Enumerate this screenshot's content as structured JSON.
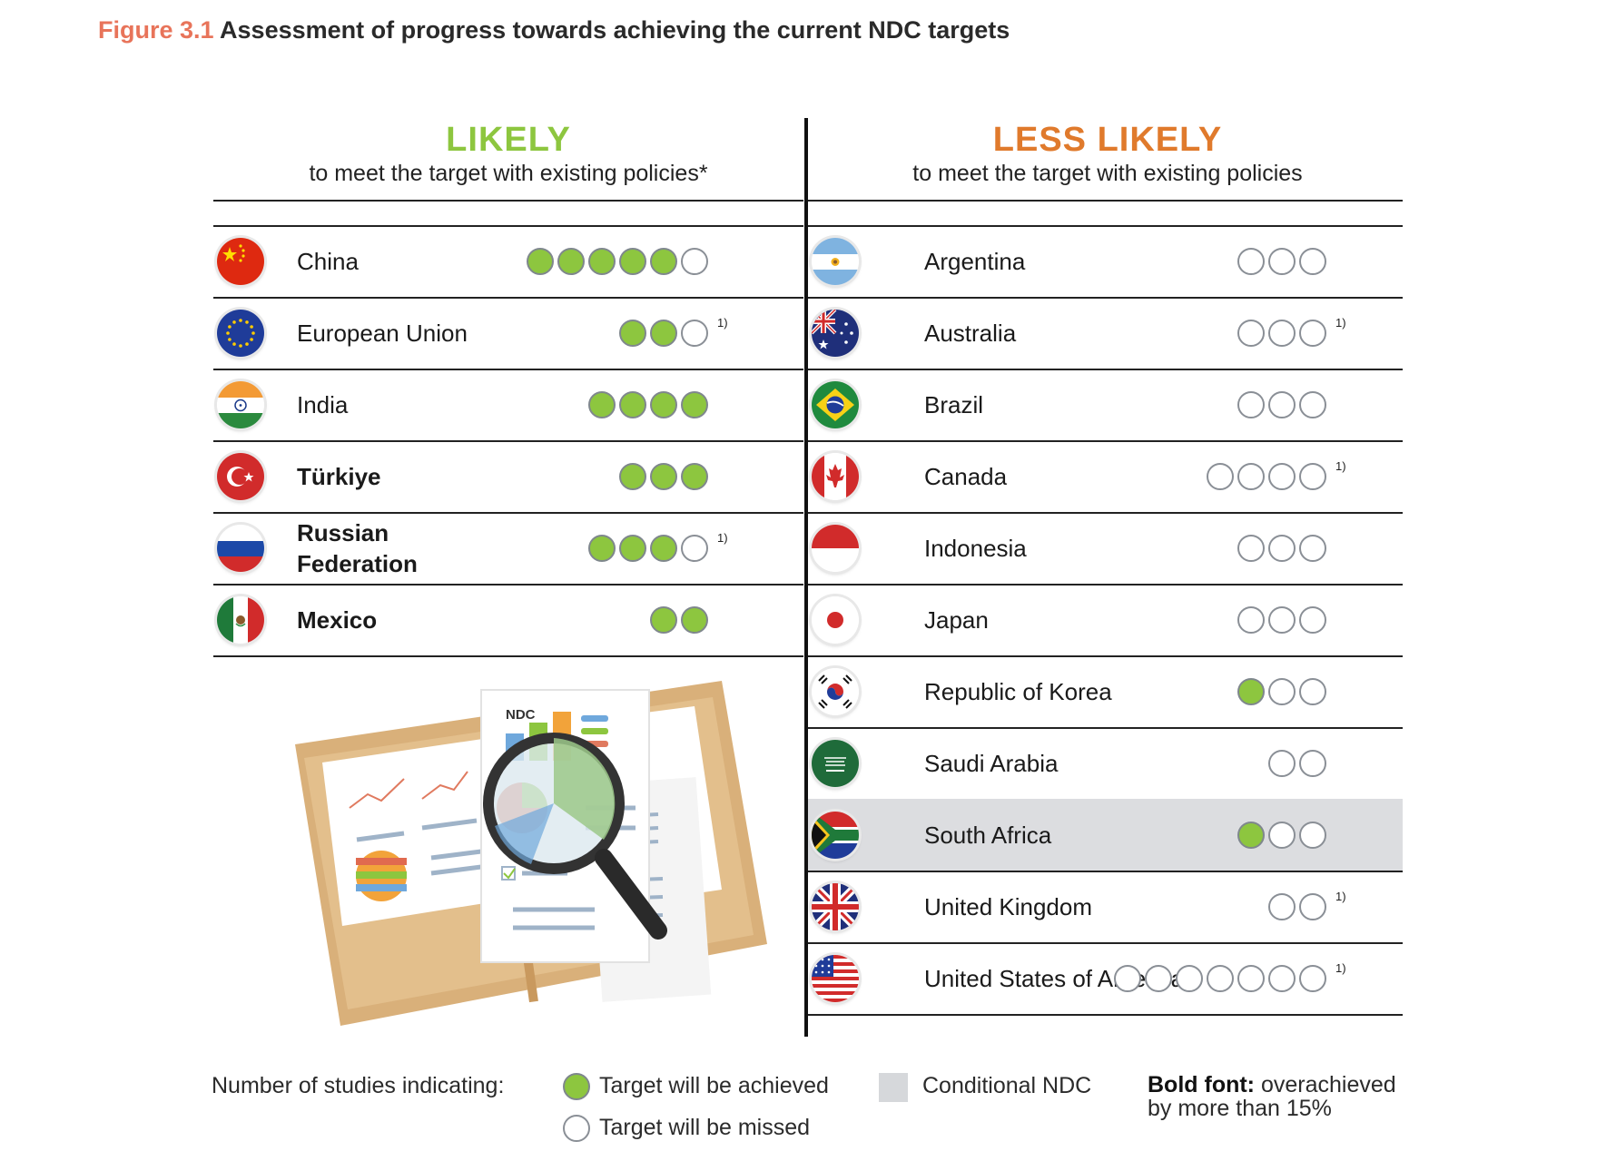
{
  "figure": {
    "number": "Figure 3.1",
    "title": "Assessment of progress towards achieving the current NDC targets"
  },
  "columns": {
    "likely": {
      "heading": "LIKELY",
      "subheading": "to meet the target with existing policies*",
      "color": "#8dc63f"
    },
    "less_likely": {
      "heading": "LESS LIKELY",
      "subheading": "to meet the target with existing policies",
      "color": "#e07a2c"
    }
  },
  "likely_rows": [
    {
      "country": "China",
      "achieved": 5,
      "missed": 1,
      "footnote": "",
      "bold": false,
      "conditional": false,
      "flag": "china-flag-icon"
    },
    {
      "country": "European Union",
      "achieved": 2,
      "missed": 1,
      "footnote": "1)",
      "bold": false,
      "conditional": false,
      "flag": "eu-flag-icon"
    },
    {
      "country": "India",
      "achieved": 4,
      "missed": 0,
      "footnote": "",
      "bold": false,
      "conditional": false,
      "flag": "india-flag-icon"
    },
    {
      "country": "Türkiye",
      "achieved": 3,
      "missed": 0,
      "footnote": "",
      "bold": true,
      "conditional": false,
      "flag": "turkey-flag-icon"
    },
    {
      "country": "Russian Federation",
      "achieved": 3,
      "missed": 1,
      "footnote": "1)",
      "bold": true,
      "conditional": false,
      "flag": "russia-flag-icon"
    },
    {
      "country": "Mexico",
      "achieved": 2,
      "missed": 0,
      "footnote": "",
      "bold": true,
      "conditional": false,
      "flag": "mexico-flag-icon"
    }
  ],
  "less_likely_rows": [
    {
      "country": "Argentina",
      "achieved": 0,
      "missed": 3,
      "footnote": "",
      "bold": false,
      "conditional": false,
      "flag": "argentina-flag-icon"
    },
    {
      "country": "Australia",
      "achieved": 0,
      "missed": 3,
      "footnote": "1)",
      "bold": false,
      "conditional": false,
      "flag": "australia-flag-icon"
    },
    {
      "country": "Brazil",
      "achieved": 0,
      "missed": 3,
      "footnote": "",
      "bold": false,
      "conditional": false,
      "flag": "brazil-flag-icon"
    },
    {
      "country": "Canada",
      "achieved": 0,
      "missed": 4,
      "footnote": "1)",
      "bold": false,
      "conditional": false,
      "flag": "canada-flag-icon"
    },
    {
      "country": "Indonesia",
      "achieved": 0,
      "missed": 3,
      "footnote": "",
      "bold": false,
      "conditional": false,
      "flag": "indonesia-flag-icon"
    },
    {
      "country": "Japan",
      "achieved": 0,
      "missed": 3,
      "footnote": "",
      "bold": false,
      "conditional": false,
      "flag": "japan-flag-icon"
    },
    {
      "country": "Republic of Korea",
      "achieved": 1,
      "missed": 2,
      "footnote": "",
      "bold": false,
      "conditional": false,
      "flag": "korea-flag-icon"
    },
    {
      "country": "Saudi Arabia",
      "achieved": 0,
      "missed": 2,
      "footnote": "",
      "bold": false,
      "conditional": false,
      "flag": "saudi-flag-icon"
    },
    {
      "country": "South Africa",
      "achieved": 1,
      "missed": 2,
      "footnote": "",
      "bold": false,
      "conditional": true,
      "flag": "south-africa-flag-icon"
    },
    {
      "country": "United Kingdom",
      "achieved": 0,
      "missed": 2,
      "footnote": "1)",
      "bold": false,
      "conditional": false,
      "flag": "uk-flag-icon"
    },
    {
      "country": "United States of America",
      "achieved": 0,
      "missed": 7,
      "footnote": "1)",
      "bold": false,
      "conditional": false,
      "flag": "usa-flag-icon"
    }
  ],
  "illustration": {
    "label": "NDC"
  },
  "legend": {
    "label": "Number of studies indicating:",
    "achieved": "Target will be achieved",
    "missed": "Target will be missed",
    "conditional": "Conditional NDC",
    "bold_key": "Bold font:",
    "bold_text": "overachieved by more than 15%"
  },
  "colors": {
    "achieved": "#8dc63f",
    "conditional": "#dcdde0",
    "figure_number": "#e8745a"
  }
}
